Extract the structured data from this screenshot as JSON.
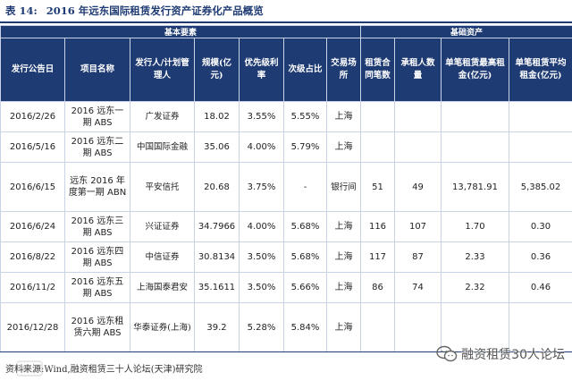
{
  "title": {
    "label": "表 14:",
    "text": "2016 年远东国际租赁发行资产证券化产品概览"
  },
  "groups": {
    "basic": "基本要素",
    "underlying": "基础资产"
  },
  "columns": {
    "date": "发行公告日",
    "project": "项目名称",
    "issuer": "发行人/计划管理人",
    "scale": "规模(亿元)",
    "priority_rate": "优先级利率",
    "subordinate_ratio": "次级占比",
    "exchange": "交易场所",
    "contracts": "租赁合同笔数",
    "lessees": "承租人数量",
    "max_rent": "单笔租赁最高租金(亿元)",
    "avg_rent": "单笔租赁平均租金(亿元)"
  },
  "rows": [
    {
      "date": "2016/2/26",
      "project": "2016 远东一期 ABS",
      "issuer": "广发证券",
      "scale": "18.02",
      "priority_rate": "3.55%",
      "subordinate_ratio": "5.55%",
      "exchange": "上海",
      "contracts": "",
      "lessees": "",
      "max_rent": "",
      "avg_rent": ""
    },
    {
      "date": "2016/5/16",
      "project": "2016 远东二期 ABS",
      "issuer": "中国国际金融",
      "scale": "35.06",
      "priority_rate": "4.00%",
      "subordinate_ratio": "5.79%",
      "exchange": "上海",
      "contracts": "",
      "lessees": "",
      "max_rent": "",
      "avg_rent": ""
    },
    {
      "date": "2016/6/15",
      "project": "远东 2016 年度第一期 ABN",
      "issuer": "平安信托",
      "scale": "20.68",
      "priority_rate": "3.75%",
      "subordinate_ratio": "-",
      "exchange": "银行间",
      "contracts": "51",
      "lessees": "49",
      "max_rent": "13,781.91",
      "avg_rent": "5,385.02"
    },
    {
      "date": "2016/6/24",
      "project": "2016 远东三期 ABS",
      "issuer": "兴证证券",
      "scale": "34.7966",
      "priority_rate": "4.00%",
      "subordinate_ratio": "5.68%",
      "exchange": "上海",
      "contracts": "116",
      "lessees": "107",
      "max_rent": "1.70",
      "avg_rent": "0.30"
    },
    {
      "date": "2016/8/22",
      "project": "2016 远东四期 ABS",
      "issuer": "中信证券",
      "scale": "30.8134",
      "priority_rate": "3.50%",
      "subordinate_ratio": "5.68%",
      "exchange": "上海",
      "contracts": "117",
      "lessees": "87",
      "max_rent": "2.33",
      "avg_rent": "0.36"
    },
    {
      "date": "2016/11/2",
      "project": "2016 远东五期 ABS",
      "issuer": "上海国泰君安",
      "scale": "35.1611",
      "priority_rate": "3.50%",
      "subordinate_ratio": "5.66%",
      "exchange": "上海",
      "contracts": "86",
      "lessees": "74",
      "max_rent": "2.32",
      "avg_rent": "0.46"
    },
    {
      "date": "2016/12/28",
      "project": "2016 远东租赁六期 ABS",
      "issuer": "华泰证券(上海)",
      "scale": "39.2",
      "priority_rate": "5.28%",
      "subordinate_ratio": "5.84%",
      "exchange": "上海",
      "contracts": "",
      "lessees": "",
      "max_rent": "",
      "avg_rent": ""
    }
  ],
  "source": "资料来源:Wind,融资租赁三十人论坛(天津)研究院",
  "watermark": {
    "account": "融资租赁30人论坛",
    "icon": "wechat-icon"
  },
  "colors": {
    "header_bg": "#1f3b73",
    "border": "#c9d3e6"
  }
}
